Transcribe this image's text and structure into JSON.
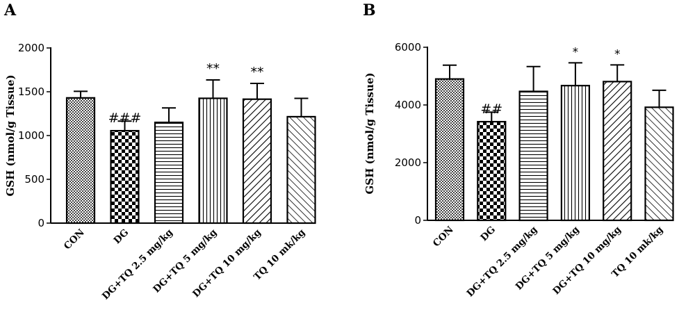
{
  "chart_data": [
    {
      "panel": "A",
      "type": "bar",
      "ylabel": "GSH (nmol/g Tissue)",
      "ylim": [
        0,
        2000
      ],
      "yticks": [
        "0",
        "500",
        "1000",
        "1500",
        "2000"
      ],
      "yticks_values": [
        0,
        500,
        1000,
        1500,
        2000
      ],
      "categories": [
        "CON",
        "DG",
        "DG+TQ 2.5 mg/kg",
        "DG+TQ 5 mg/kg",
        "DG+TQ 10 mg/kg",
        "TQ 10 mk/kg"
      ],
      "values": [
        1430,
        1055,
        1150,
        1425,
        1415,
        1215
      ],
      "errors": [
        75,
        110,
        165,
        210,
        180,
        210
      ],
      "patterns": [
        "dots",
        "checker",
        "hlines",
        "vlines",
        "diag-fwd",
        "diag-back"
      ],
      "annotations": [
        "",
        "###",
        "",
        "**",
        "**",
        ""
      ],
      "grid": false
    },
    {
      "panel": "B",
      "type": "bar",
      "ylabel": "GSH (nmol/g Tissue)",
      "ylim": [
        0,
        6000
      ],
      "yticks": [
        "0",
        "2000",
        "4000",
        "6000"
      ],
      "yticks_values": [
        0,
        2000,
        4000,
        6000
      ],
      "categories": [
        "CON",
        "DG",
        "DG+TQ 2.5 mg/kg",
        "DG+TQ 5 mg/kg",
        "DG+TQ 10 mg/kg",
        "TQ 10 mk/kg"
      ],
      "values": [
        4900,
        3420,
        4470,
        4670,
        4810,
        3920
      ],
      "errors": [
        480,
        330,
        860,
        790,
        580,
        590
      ],
      "patterns": [
        "dots",
        "checker",
        "hlines",
        "vlines",
        "diag-fwd",
        "diag-back"
      ],
      "annotations": [
        "",
        "##",
        "",
        "*",
        "*",
        ""
      ],
      "grid": false
    }
  ]
}
